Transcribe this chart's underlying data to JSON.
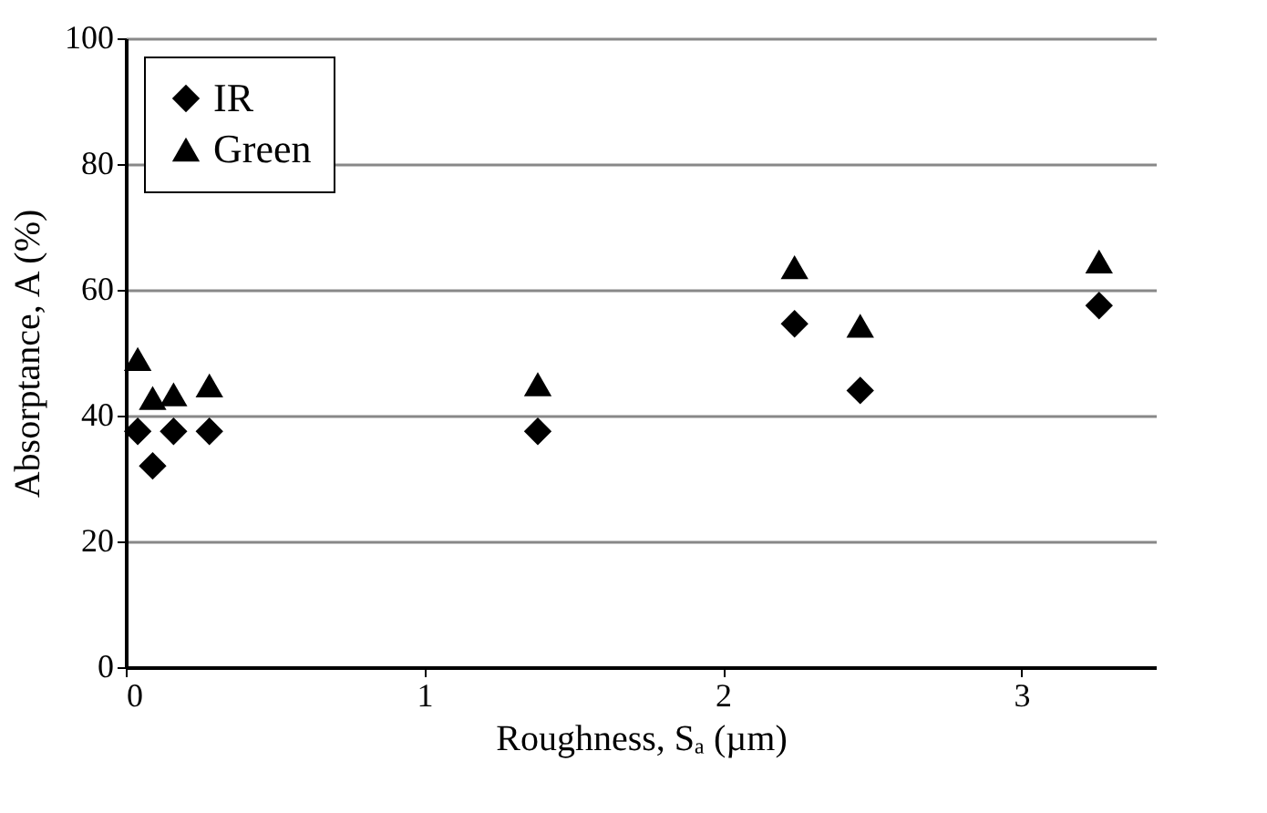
{
  "chart_data": {
    "type": "scatter",
    "xlabel": "Roughness, Sₐ (µm)",
    "ylabel": "Absorptance, A (%)",
    "xlim": [
      0,
      3.45
    ],
    "xticks": [
      0,
      1,
      2,
      3
    ],
    "ylim": [
      0,
      100
    ],
    "yticks": [
      0,
      20,
      40,
      60,
      80,
      100
    ],
    "grid": "y",
    "legend": "top left",
    "series": [
      {
        "name": "IR",
        "color": "#000000",
        "marker": "diamond",
        "x": [
          0.04,
          0.09,
          0.16,
          0.28,
          1.38,
          2.24,
          2.46,
          3.26
        ],
        "values": [
          37.5,
          32,
          37.5,
          37.5,
          37.5,
          54.6,
          44,
          57.5
        ]
      },
      {
        "name": "Green",
        "color": "#000000",
        "marker": "triangle",
        "x": [
          0.04,
          0.09,
          0.16,
          0.28,
          1.38,
          2.24,
          2.46,
          3.26
        ],
        "values": [
          49,
          42.8,
          43.4,
          44.8,
          45,
          63.6,
          54.3,
          64.5
        ]
      }
    ]
  }
}
